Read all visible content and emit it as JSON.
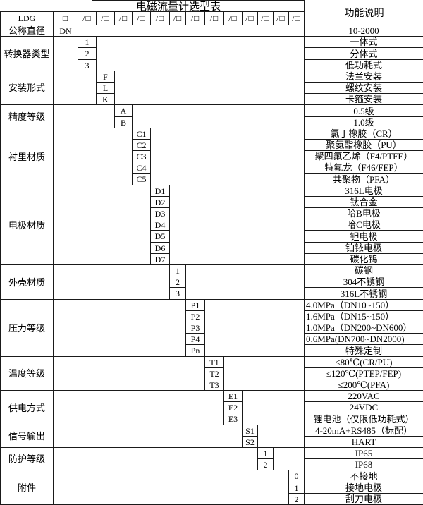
{
  "title": "电磁流量计选型表",
  "desc_header": "功能说明",
  "model_prefix": "LDG",
  "code_row": {
    "boxes": [
      "□",
      "/□",
      "/□",
      "/□",
      "/□",
      "/□",
      "/□",
      "/□",
      "/□",
      "/□",
      "/□",
      "/□",
      "/□",
      "/□"
    ]
  },
  "groups": [
    {
      "label": "公称直径",
      "code_col": 1,
      "rows": [
        {
          "code": "DN",
          "desc": "10-2000"
        }
      ]
    },
    {
      "label": "转换器类型",
      "code_col": 2,
      "rows": [
        {
          "code": "1",
          "desc": "一体式"
        },
        {
          "code": "2",
          "desc": "分体式"
        },
        {
          "code": "3",
          "desc": "低功耗式"
        }
      ]
    },
    {
      "label": "安装形式",
      "code_col": 3,
      "rows": [
        {
          "code": "F",
          "desc": "法兰安装"
        },
        {
          "code": "L",
          "desc": "螺纹安装"
        },
        {
          "code": "K",
          "desc": "卡箍安装"
        }
      ]
    },
    {
      "label": "精度等级",
      "code_col": 4,
      "rows": [
        {
          "code": "A",
          "desc": "0.5级"
        },
        {
          "code": "B",
          "desc": "1.0级"
        }
      ]
    },
    {
      "label": "衬里材质",
      "code_col": 5,
      "rows": [
        {
          "code": "C1",
          "desc": "氯丁橡胶（CR）"
        },
        {
          "code": "C2",
          "desc": "聚氨酯橡胶（PU）"
        },
        {
          "code": "C3",
          "desc": "聚四氟乙烯（F4/PTFE）"
        },
        {
          "code": "C4",
          "desc": "特氟龙（F46/FEP）"
        },
        {
          "code": "C5",
          "desc": "共聚物（PFA）"
        }
      ]
    },
    {
      "label": "电极材质",
      "code_col": 6,
      "rows": [
        {
          "code": "D1",
          "desc": "316L电极"
        },
        {
          "code": "D2",
          "desc": "钛合金"
        },
        {
          "code": "D3",
          "desc": "哈B电极"
        },
        {
          "code": "D4",
          "desc": "哈C电极"
        },
        {
          "code": "D5",
          "desc": "钽电极"
        },
        {
          "code": "D6",
          "desc": "铂铱电极"
        },
        {
          "code": "D7",
          "desc": "碳化钨"
        }
      ]
    },
    {
      "label": "外壳材质",
      "code_col": 7,
      "rows": [
        {
          "code": "1",
          "desc": "碳钢"
        },
        {
          "code": "2",
          "desc": "304不锈钢"
        },
        {
          "code": "3",
          "desc": "316L不锈钢"
        }
      ]
    },
    {
      "label": "压力等级",
      "code_col": 8,
      "rows": [
        {
          "code": "P1",
          "desc": "4.0MPa（DN10~150）",
          "align": "left"
        },
        {
          "code": "P2",
          "desc": "1.6MPa（DN15~150）",
          "align": "left"
        },
        {
          "code": "P3",
          "desc": "1.0MPa（DN200~DN600）",
          "align": "left"
        },
        {
          "code": "P4",
          "desc": "0.6MPa(DN700~DN2000)",
          "align": "left"
        },
        {
          "code": "Pn",
          "desc": "特殊定制"
        }
      ]
    },
    {
      "label": "温度等级",
      "code_col": 9,
      "rows": [
        {
          "code": "T1",
          "desc": "≤80℃(CR/PU)"
        },
        {
          "code": "T2",
          "desc": "≤120℃(PTEP/FEP)"
        },
        {
          "code": "T3",
          "desc": "≤200℃(PFA)"
        }
      ]
    },
    {
      "label": "供电方式",
      "code_col": 10,
      "rows": [
        {
          "code": "E1",
          "desc": "220VAC"
        },
        {
          "code": "E2",
          "desc": "24VDC"
        },
        {
          "code": "E3",
          "desc": "锂电池（仅限低功耗式）"
        }
      ]
    },
    {
      "label": "信号输出",
      "code_col": 11,
      "rows": [
        {
          "code": "S1",
          "desc": "4-20mA+RS485（标配）"
        },
        {
          "code": "S2",
          "desc": "HART"
        }
      ]
    },
    {
      "label": "防护等级",
      "code_col": 12,
      "rows": [
        {
          "code": "1",
          "desc": "IP65"
        },
        {
          "code": "2",
          "desc": "IP68"
        }
      ]
    },
    {
      "label": "附件",
      "code_col": 14,
      "rows": [
        {
          "code": "0",
          "desc": "不接地"
        },
        {
          "code": "1",
          "desc": "接地电极"
        },
        {
          "code": "2",
          "desc": "刮刀电极"
        }
      ]
    }
  ]
}
